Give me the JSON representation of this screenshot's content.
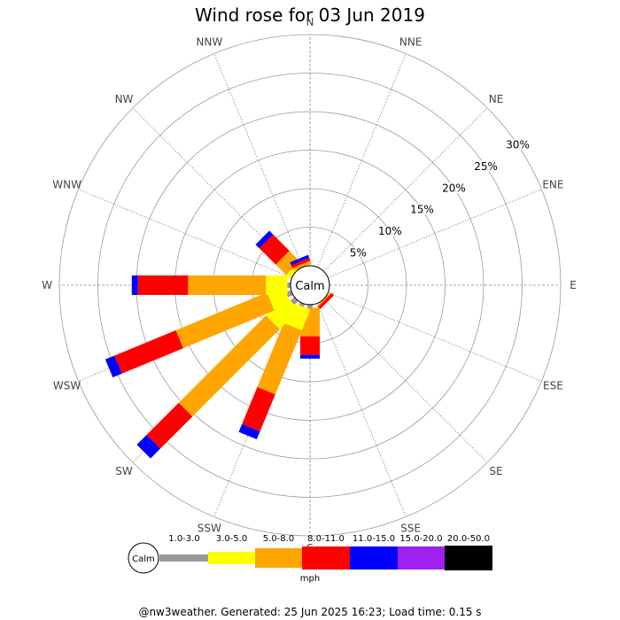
{
  "title": "Wind rose for 03 Jun 2019",
  "footer": "@nw3weather. Generated: 25 Jun 2025 16:23; Load time: 0.15 s",
  "chart_data": {
    "type": "wind-rose",
    "title": "Wind rose for 03 Jun 2019",
    "directions": [
      "N",
      "NNE",
      "NE",
      "ENE",
      "E",
      "ESE",
      "SE",
      "SSE",
      "S",
      "SSW",
      "SW",
      "WSW",
      "W",
      "WNW",
      "NW",
      "NNW"
    ],
    "ring_percents": [
      5,
      10,
      15,
      20,
      25,
      30
    ],
    "ring_labels": [
      "5%",
      "10%",
      "15%",
      "20%",
      "25%",
      "30%"
    ],
    "calm_label": "Calm",
    "units": "mph",
    "speed_bins": [
      {
        "label": "1.0-3.0",
        "color": "#999999"
      },
      {
        "label": "3.0-5.0",
        "color": "#ffff00"
      },
      {
        "label": "5.0-8.0",
        "color": "#ffa500"
      },
      {
        "label": "8.0-11.0",
        "color": "#ff0000"
      },
      {
        "label": "11.0-15.0",
        "color": "#0000ff"
      },
      {
        "label": "15.0-20.0",
        "color": "#a020f0"
      },
      {
        "label": "20.0-50.0",
        "color": "#000000"
      }
    ],
    "cumulative_percent_by_direction": {
      "N": [
        0.0,
        0.0,
        0.0,
        0.0,
        0.0,
        0.0,
        0.0
      ],
      "NNE": [
        0.0,
        0.0,
        0.0,
        0.0,
        0.0,
        0.0,
        0.0
      ],
      "NE": [
        0.0,
        0.0,
        0.0,
        0.0,
        0.0,
        0.0,
        0.0
      ],
      "ENE": [
        0.0,
        0.0,
        0.0,
        0.0,
        0.0,
        0.0,
        0.0
      ],
      "E": [
        0.0,
        0.0,
        0.0,
        0.0,
        0.0,
        0.0,
        0.0
      ],
      "ESE": [
        0.0,
        0.0,
        0.0,
        0.0,
        0.0,
        0.0,
        0.0
      ],
      "SE": [
        0.0,
        0.0,
        0.2,
        0.6,
        0.6,
        0.6,
        0.6
      ],
      "SSE": [
        0.0,
        0.0,
        0.0,
        0.0,
        0.0,
        0.0,
        0.0
      ],
      "S": [
        0.4,
        0.4,
        4.1,
        6.5,
        7.0,
        7.0,
        7.0
      ],
      "SSW": [
        0.4,
        3.3,
        12.3,
        17.5,
        18.6,
        18.6,
        18.6
      ],
      "SW": [
        0.7,
        4.3,
        20.3,
        26.2,
        28.0,
        28.0,
        28.0
      ],
      "WSW": [
        0.7,
        3.0,
        15.8,
        24.4,
        25.7,
        25.7,
        25.7
      ],
      "W": [
        0.4,
        3.2,
        13.3,
        19.8,
        20.6,
        20.6,
        20.6
      ],
      "WNW": [
        0.0,
        0.0,
        0.0,
        0.0,
        0.0,
        0.0,
        0.0
      ],
      "NW": [
        0.0,
        0.6,
        2.5,
        5.5,
        6.2,
        6.2,
        6.2
      ],
      "NNW": [
        0.0,
        0.0,
        0.4,
        0.8,
        1.2,
        1.2,
        1.2
      ]
    }
  }
}
